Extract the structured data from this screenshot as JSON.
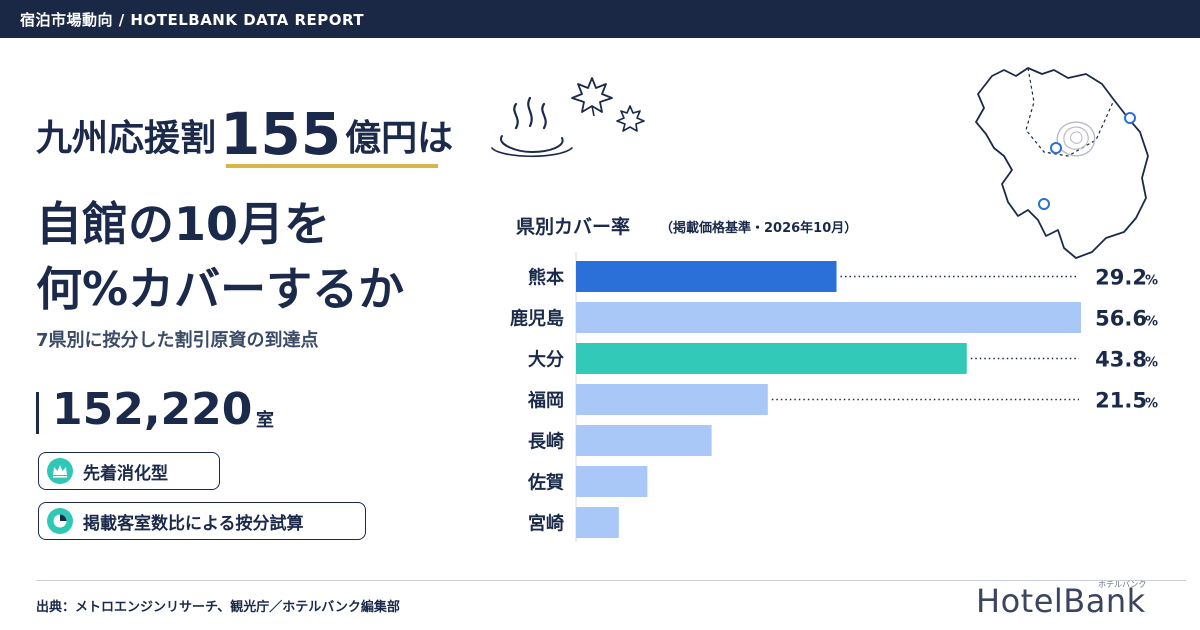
{
  "header": {
    "bar_text": "宿泊市場動向 / HOTELBANK DATA REPORT"
  },
  "headline": {
    "line1_pre": "九州応援割",
    "line1_amount": "155",
    "line1_unit": "億円",
    "line1_post": "は",
    "line2": "自館の10月を",
    "line3": "何%カバーするか"
  },
  "subtitle": "7県別に按分した割引原資の到達点",
  "rooms": {
    "value": "152,220",
    "unit": "室"
  },
  "badges": [
    {
      "label": "先着消化型",
      "icon": "crown-icon"
    },
    {
      "label": "掲載客室数比による按分試算",
      "icon": "pie-chart-icon"
    }
  ],
  "chart_title": "県別カバー率",
  "chart_note": "（掲載価格基準・2026年10月）",
  "chart_data": {
    "type": "bar",
    "orientation": "horizontal",
    "categories": [
      "熊本",
      "鹿児島",
      "大分",
      "福岡",
      "長崎",
      "佐賀",
      "宮崎"
    ],
    "values": [
      29.2,
      56.6,
      43.8,
      21.5,
      15.2,
      8.0,
      4.8
    ],
    "labels": [
      "29.2",
      "56.6",
      "43.8",
      "21.5",
      "",
      "",
      ""
    ],
    "label_unit": "%",
    "colors": [
      "#2b6fd9",
      "#a9c8f7",
      "#33c9b8",
      "#a9c8f7",
      "#a9c8f7",
      "#a9c8f7",
      "#a9c8f7"
    ],
    "xlim": [
      0,
      56.6
    ],
    "grid": false,
    "legend": "none"
  },
  "footer": {
    "source": "出典：メトロエンジンリサーチ、観光庁／ホテルバンク編集部",
    "logo": "HotelBank",
    "logo_kana": "ホテルバンク"
  }
}
